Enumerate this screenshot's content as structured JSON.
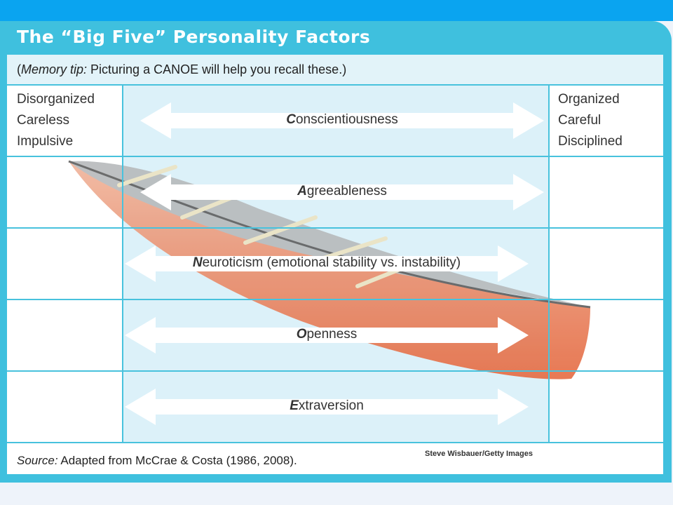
{
  "title": "The “Big Five” Personality Factors",
  "memory_tip": {
    "prefix": "(",
    "lead": "Memory tip:",
    "text": " Picturing a CANOE will help you recall these.)"
  },
  "left_column": [
    "Disorganized",
    "Careless",
    "Impulsive"
  ],
  "right_column": [
    "Organized",
    "Careful",
    "Disciplined"
  ],
  "factors": [
    {
      "initial": "C",
      "rest": "onscientiousness"
    },
    {
      "initial": "A",
      "rest": "greeableness"
    },
    {
      "initial": "N",
      "rest": "euroticism (emotional stability vs. instability)"
    },
    {
      "initial": "O",
      "rest": "penness"
    },
    {
      "initial": "E",
      "rest": "xtraversion"
    }
  ],
  "source": {
    "lead": "Source:",
    "text": " Adapted from McCrae & Costa (1986, 2008)."
  },
  "photo_credit": "Steve Wisbauer/Getty Images",
  "colors": {
    "header_bar": "#0aa4f0",
    "panel": "#3fc0de",
    "grid_lines": "#48c2dd",
    "canoe": "#e0623c"
  }
}
